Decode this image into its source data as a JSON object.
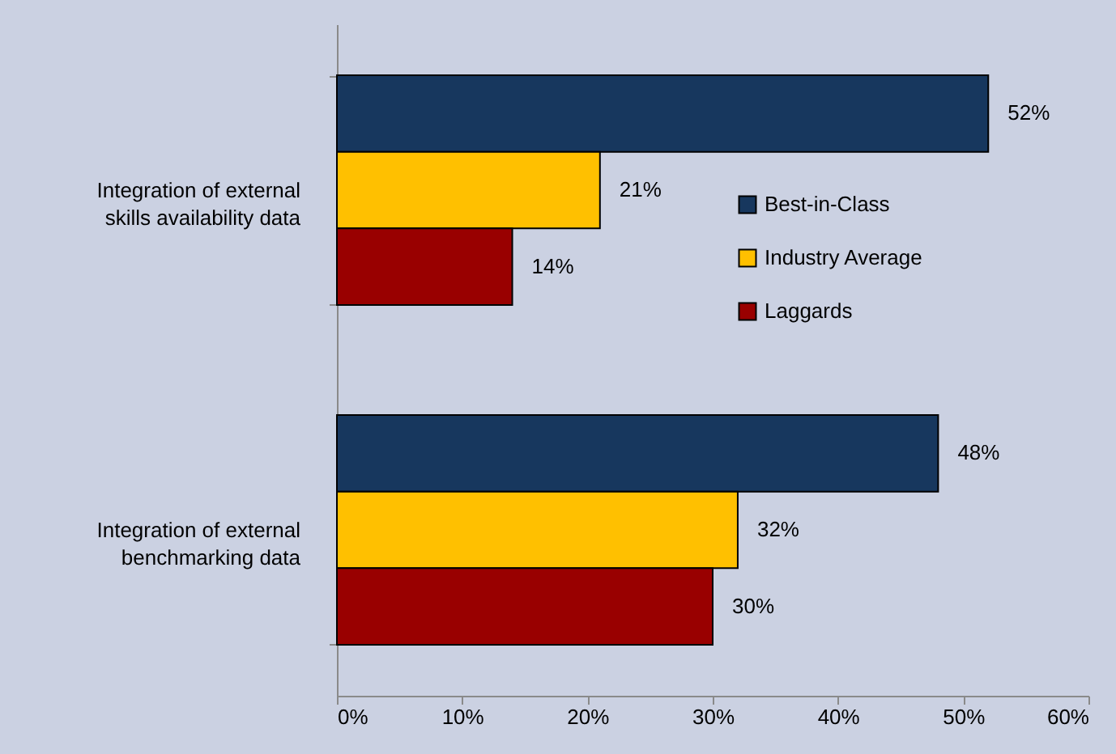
{
  "chart_data": {
    "type": "bar",
    "orientation": "horizontal",
    "categories": [
      "Integration of external skills availability data",
      "Integration of external benchmarking data"
    ],
    "series": [
      {
        "name": "Best-in-Class",
        "color": "#17375e",
        "values": [
          52,
          48
        ],
        "value_labels": [
          "52%",
          "48%"
        ]
      },
      {
        "name": "Industry Average",
        "color": "#ffc000",
        "values": [
          21,
          32
        ],
        "value_labels": [
          "21%",
          "32%"
        ]
      },
      {
        "name": "Laggards",
        "color": "#990000",
        "values": [
          14,
          30
        ],
        "value_labels": [
          "14%",
          "30%"
        ]
      }
    ],
    "xlim": [
      0,
      60
    ],
    "xticks": [
      {
        "value": 0,
        "label": "0%"
      },
      {
        "value": 10,
        "label": "10%"
      },
      {
        "value": 20,
        "label": "20%"
      },
      {
        "value": 30,
        "label": "30%"
      },
      {
        "value": 40,
        "label": "40%"
      },
      {
        "value": 50,
        "label": "50%"
      },
      {
        "value": 60,
        "label": "60%"
      }
    ],
    "legend": "right",
    "grid": false
  }
}
